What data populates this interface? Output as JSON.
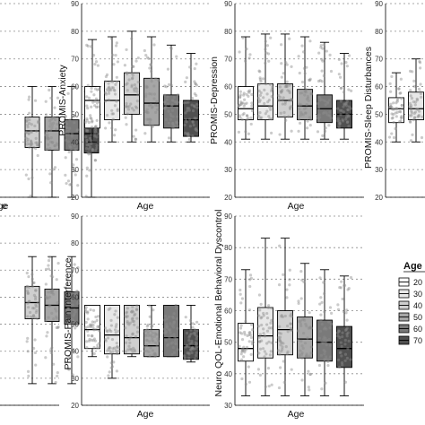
{
  "chart_data": [
    {
      "type": "box",
      "panel": "top-left (cropped)",
      "title": "",
      "xlabel": "Age",
      "ylabel": "",
      "ylim": [
        20,
        90
      ],
      "yticks": [
        20,
        30,
        40,
        50,
        60,
        70,
        80,
        90
      ],
      "grid": true,
      "series": [
        {
          "name": "40",
          "q1": 38,
          "median": 44,
          "q3": 49,
          "whisker_low": 20,
          "whisker_high": 60
        },
        {
          "name": "50",
          "q1": 37,
          "median": 44,
          "q3": 49,
          "whisker_low": 20,
          "whisker_high": 60
        },
        {
          "name": "60",
          "q1": 37,
          "median": 43,
          "q3": 48,
          "whisker_low": 20,
          "whisker_high": 60
        },
        {
          "name": "70",
          "q1": 36,
          "median": 43,
          "q3": 48,
          "whisker_low": 20,
          "whisker_high": 60
        }
      ]
    },
    {
      "type": "box",
      "panel": "top-middle",
      "title": "",
      "xlabel": "Age",
      "ylabel": "PROMIS-Anxiety",
      "ylim": [
        20,
        90
      ],
      "yticks": [
        20,
        30,
        40,
        50,
        60,
        70,
        80,
        90
      ],
      "grid": true,
      "series": [
        {
          "name": "20",
          "q1": 45,
          "median": 55,
          "q3": 60,
          "whisker_low": 40,
          "whisker_high": 77
        },
        {
          "name": "30",
          "q1": 48,
          "median": 55,
          "q3": 62,
          "whisker_low": 40,
          "whisker_high": 78
        },
        {
          "name": "40",
          "q1": 50,
          "median": 57,
          "q3": 65,
          "whisker_low": 40,
          "whisker_high": 80
        },
        {
          "name": "50",
          "q1": 46,
          "median": 54,
          "q3": 63,
          "whisker_low": 40,
          "whisker_high": 78
        },
        {
          "name": "60",
          "q1": 45,
          "median": 53,
          "q3": 57,
          "whisker_low": 40,
          "whisker_high": 75
        },
        {
          "name": "70",
          "q1": 42,
          "median": 48,
          "q3": 55,
          "whisker_low": 40,
          "whisker_high": 72
        }
      ]
    },
    {
      "type": "box",
      "panel": "top-right",
      "title": "",
      "xlabel": "Age",
      "ylabel": "PROMIS-Depression",
      "ylim": [
        20,
        90
      ],
      "yticks": [
        20,
        30,
        40,
        50,
        60,
        70,
        80,
        90
      ],
      "grid": true,
      "series": [
        {
          "name": "20",
          "q1": 48,
          "median": 52,
          "q3": 60,
          "whisker_low": 41,
          "whisker_high": 78
        },
        {
          "name": "30",
          "q1": 48,
          "median": 53,
          "q3": 61,
          "whisker_low": 41,
          "whisker_high": 79
        },
        {
          "name": "40",
          "q1": 49,
          "median": 55,
          "q3": 61,
          "whisker_low": 41,
          "whisker_high": 79
        },
        {
          "name": "50",
          "q1": 48,
          "median": 53,
          "q3": 59,
          "whisker_low": 41,
          "whisker_high": 78
        },
        {
          "name": "60",
          "q1": 47,
          "median": 52,
          "q3": 57,
          "whisker_low": 41,
          "whisker_high": 76
        },
        {
          "name": "70",
          "q1": 45,
          "median": 50,
          "q3": 55,
          "whisker_low": 41,
          "whisker_high": 72
        }
      ]
    },
    {
      "type": "box",
      "panel": "top-far-right (cropped)",
      "title": "",
      "xlabel": "",
      "ylabel": "PROMIS-Sleep Disturbances",
      "ylim": [
        20,
        90
      ],
      "yticks": [
        20,
        30,
        40,
        50,
        60,
        70,
        80,
        90
      ],
      "grid": true,
      "series": [
        {
          "name": "20",
          "q1": 47,
          "median": 52,
          "q3": 56,
          "whisker_low": 40,
          "whisker_high": 65
        },
        {
          "name": "30",
          "q1": 48,
          "median": 52,
          "q3": 58,
          "whisker_low": 40,
          "whisker_high": 70
        }
      ]
    },
    {
      "type": "box",
      "panel": "bottom-left (cropped)",
      "title": "",
      "xlabel": "",
      "ylabel": "",
      "ylim": [
        20,
        90
      ],
      "yticks": [
        20,
        30,
        40,
        50,
        60,
        70,
        80,
        90
      ],
      "grid": true,
      "series": [
        {
          "name": "40",
          "q1": 52,
          "median": 58,
          "q3": 64,
          "whisker_low": 28,
          "whisker_high": 75
        },
        {
          "name": "50",
          "q1": 51,
          "median": 57,
          "q3": 63,
          "whisker_low": 28,
          "whisker_high": 75
        },
        {
          "name": "60",
          "q1": 50,
          "median": 56,
          "q3": 62,
          "whisker_low": 28,
          "whisker_high": 75
        }
      ]
    },
    {
      "type": "box",
      "panel": "bottom-middle",
      "title": "",
      "xlabel": "Age",
      "ylabel": "PROMIS-Pain Interference",
      "ylim": [
        20,
        90
      ],
      "yticks": [
        20,
        30,
        40,
        50,
        60,
        70,
        80,
        90
      ],
      "grid": true,
      "series": [
        {
          "name": "20",
          "q1": 41,
          "median": 48,
          "q3": 57,
          "whisker_low": 38,
          "whisker_high": 57
        },
        {
          "name": "30",
          "q1": 39,
          "median": 46,
          "q3": 57,
          "whisker_low": 30,
          "whisker_high": 57
        },
        {
          "name": "40",
          "q1": 39,
          "median": 45,
          "q3": 57,
          "whisker_low": 38,
          "whisker_high": 57
        },
        {
          "name": "50",
          "q1": 38,
          "median": 42,
          "q3": 48,
          "whisker_low": 38,
          "whisker_high": 57
        },
        {
          "name": "60",
          "q1": 38,
          "median": 45,
          "q3": 57,
          "whisker_low": 38,
          "whisker_high": 57
        },
        {
          "name": "70",
          "q1": 37,
          "median": 42,
          "q3": 48,
          "whisker_low": 36,
          "whisker_high": 57
        }
      ]
    },
    {
      "type": "box",
      "panel": "bottom-right",
      "title": "",
      "xlabel": "Age",
      "ylabel": "Neuro QOL-Emotional Behavioral Dyscontrol",
      "ylim": [
        30,
        90
      ],
      "yticks": [
        30,
        40,
        50,
        60,
        70,
        80,
        90
      ],
      "grid": true,
      "series": [
        {
          "name": "20",
          "q1": 44,
          "median": 48,
          "q3": 56,
          "whisker_low": 33,
          "whisker_high": 73
        },
        {
          "name": "30",
          "q1": 45,
          "median": 52,
          "q3": 61,
          "whisker_low": 33,
          "whisker_high": 83
        },
        {
          "name": "40",
          "q1": 46,
          "median": 54,
          "q3": 60,
          "whisker_low": 33,
          "whisker_high": 83
        },
        {
          "name": "50",
          "q1": 45,
          "median": 51,
          "q3": 58,
          "whisker_low": 33,
          "whisker_high": 75
        },
        {
          "name": "60",
          "q1": 44,
          "median": 50,
          "q3": 57,
          "whisker_low": 33,
          "whisker_high": 73
        },
        {
          "name": "70",
          "q1": 42,
          "median": 48,
          "q3": 55,
          "whisker_low": 33,
          "whisker_high": 71
        }
      ]
    }
  ],
  "legend": {
    "title": "Age",
    "entries": [
      "20",
      "30",
      "40",
      "50",
      "60",
      "70"
    ],
    "fills": [
      "#ffffff",
      "#e8e8e8",
      "#cfcfcf",
      "#a6a6a6",
      "#7a7a7a",
      "#505050"
    ]
  },
  "colors": {
    "grid": "#8a8a8a",
    "box_stroke": "#000000",
    "points": "#8c8c8c"
  }
}
